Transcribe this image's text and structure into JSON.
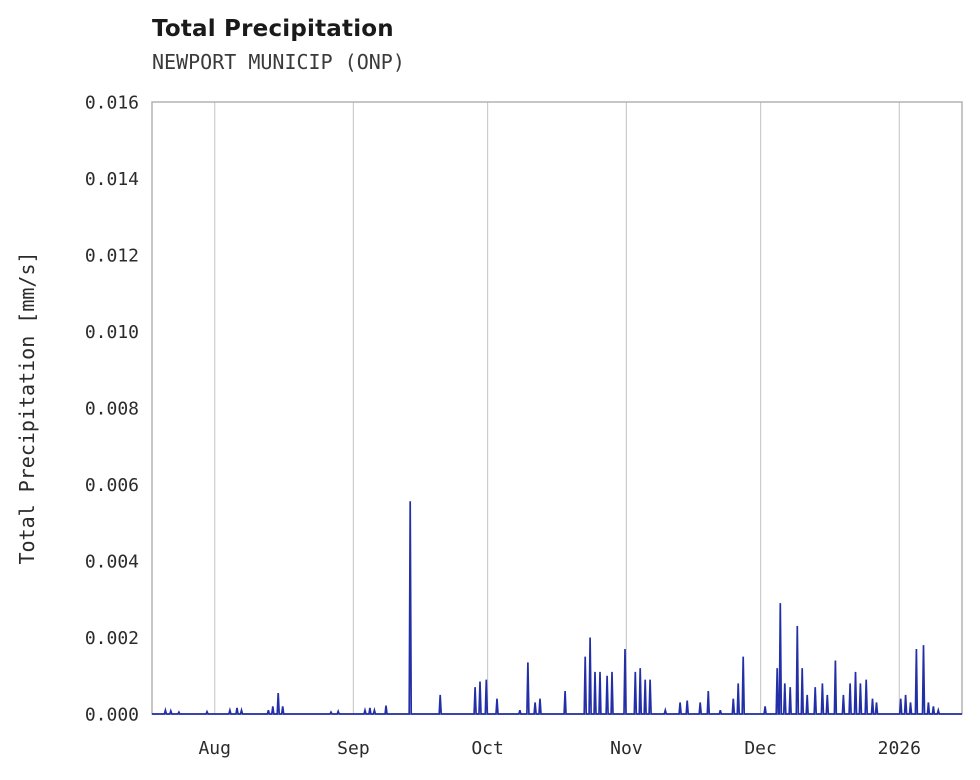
{
  "chart_data": {
    "type": "line",
    "title": "Total Precipitation",
    "subtitle": "NEWPORT MUNICIP (ONP)",
    "ylabel": "Total Precipitation [mm/s]",
    "xlabel": "",
    "line_color": "#232fa6",
    "grid": "vertical-only",
    "grid_color": "#cccccc",
    "border_color": "#aeaeae",
    "text_color": "#2b2b2b",
    "legend": "none",
    "xlim": [
      0,
      181
    ],
    "ylim": [
      0,
      0.016
    ],
    "yticks": [
      0,
      0.002,
      0.004,
      0.006,
      0.008,
      0.01,
      0.012,
      0.014,
      0.016
    ],
    "ytick_labels": [
      "0.000",
      "0.002",
      "0.004",
      "0.006",
      "0.008",
      "0.010",
      "0.012",
      "0.014",
      "0.016"
    ],
    "xticks": [
      {
        "pos": 14,
        "label": "Aug"
      },
      {
        "pos": 45,
        "label": "Sep"
      },
      {
        "pos": 75,
        "label": "Oct"
      },
      {
        "pos": 106,
        "label": "Nov"
      },
      {
        "pos": 136,
        "label": "Dec"
      },
      {
        "pos": 167,
        "label": "2026"
      }
    ],
    "x_unit": "days from left edge of plot (mid-July) to right edge (mid-January)",
    "baseline": 0,
    "spikes": [
      [
        3.0,
        0.0001
      ],
      [
        4.2,
        8e-05
      ],
      [
        6.0,
        5e-05
      ],
      [
        12.3,
        6e-05
      ],
      [
        17.4,
        0.0001
      ],
      [
        19.0,
        0.00016
      ],
      [
        20.0,
        0.0001
      ],
      [
        26.0,
        0.0001
      ],
      [
        27.0,
        0.0002
      ],
      [
        28.2,
        0.00055
      ],
      [
        29.2,
        0.0002
      ],
      [
        40.0,
        5e-05
      ],
      [
        41.6,
        7e-05
      ],
      [
        47.6,
        0.0001
      ],
      [
        48.7,
        0.00016
      ],
      [
        49.7,
        0.0001
      ],
      [
        52.3,
        0.00022
      ],
      [
        57.7,
        0.00556
      ],
      [
        64.4,
        0.0005
      ],
      [
        72.2,
        0.0007
      ],
      [
        73.3,
        0.00085
      ],
      [
        74.7,
        0.0009
      ],
      [
        77.1,
        0.0004
      ],
      [
        82.2,
        0.0001
      ],
      [
        84.0,
        0.00135
      ],
      [
        85.6,
        0.0003
      ],
      [
        86.7,
        0.0004
      ],
      [
        92.3,
        0.0006
      ],
      [
        96.8,
        0.0015
      ],
      [
        97.9,
        0.002
      ],
      [
        99.0,
        0.0011
      ],
      [
        100.1,
        0.0011
      ],
      [
        101.7,
        0.001
      ],
      [
        102.8,
        0.0011
      ],
      [
        105.7,
        0.0017
      ],
      [
        108.0,
        0.0011
      ],
      [
        109.1,
        0.0012
      ],
      [
        110.2,
        0.0009
      ],
      [
        111.3,
        0.0009
      ],
      [
        114.7,
        0.0001
      ],
      [
        118.0,
        0.0003
      ],
      [
        119.6,
        0.00035
      ],
      [
        122.5,
        0.0003
      ],
      [
        124.3,
        0.0006
      ],
      [
        127.0,
        0.0001
      ],
      [
        129.9,
        0.0004
      ],
      [
        131.0,
        0.0008
      ],
      [
        132.1,
        0.0015
      ],
      [
        137.0,
        0.0002
      ],
      [
        139.7,
        0.0012
      ],
      [
        140.4,
        0.0029
      ],
      [
        141.4,
        0.0008
      ],
      [
        142.6,
        0.0007
      ],
      [
        144.2,
        0.0023
      ],
      [
        145.3,
        0.0012
      ],
      [
        146.4,
        0.0005
      ],
      [
        148.2,
        0.0007
      ],
      [
        149.8,
        0.0008
      ],
      [
        150.9,
        0.0005
      ],
      [
        152.7,
        0.0014
      ],
      [
        154.5,
        0.0005
      ],
      [
        156.0,
        0.0008
      ],
      [
        157.2,
        0.0011
      ],
      [
        158.3,
        0.0008
      ],
      [
        159.6,
        0.0009
      ],
      [
        161.0,
        0.0004
      ],
      [
        161.9,
        0.0003
      ],
      [
        167.3,
        0.0004
      ],
      [
        168.4,
        0.0005
      ],
      [
        169.5,
        0.0003
      ],
      [
        170.8,
        0.0017
      ],
      [
        172.4,
        0.0018
      ],
      [
        173.5,
        0.0003
      ],
      [
        174.6,
        0.0002
      ],
      [
        175.7,
        0.0001
      ]
    ]
  }
}
